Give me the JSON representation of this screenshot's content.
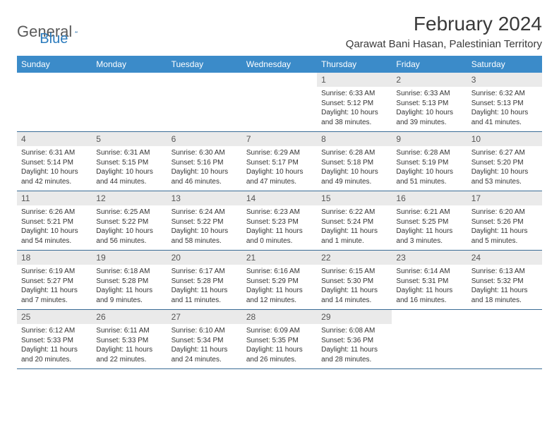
{
  "logo": {
    "part1": "General",
    "part2": "Blue"
  },
  "title": "February 2024",
  "location": "Qarawat Bani Hasan, Palestinian Territory",
  "colors": {
    "header_bar": "#3b8bc9",
    "header_text": "#ffffff",
    "daynum_bg": "#eaeaea",
    "daynum_text": "#555555",
    "border": "#3a6c96",
    "logo_blue": "#2b7bbd",
    "body_text": "#333333"
  },
  "daynames": [
    "Sunday",
    "Monday",
    "Tuesday",
    "Wednesday",
    "Thursday",
    "Friday",
    "Saturday"
  ],
  "weeks": [
    [
      null,
      null,
      null,
      null,
      {
        "n": "1",
        "sr": "Sunrise: 6:33 AM",
        "ss": "Sunset: 5:12 PM",
        "dl": "Daylight: 10 hours and 38 minutes."
      },
      {
        "n": "2",
        "sr": "Sunrise: 6:33 AM",
        "ss": "Sunset: 5:13 PM",
        "dl": "Daylight: 10 hours and 39 minutes."
      },
      {
        "n": "3",
        "sr": "Sunrise: 6:32 AM",
        "ss": "Sunset: 5:13 PM",
        "dl": "Daylight: 10 hours and 41 minutes."
      }
    ],
    [
      {
        "n": "4",
        "sr": "Sunrise: 6:31 AM",
        "ss": "Sunset: 5:14 PM",
        "dl": "Daylight: 10 hours and 42 minutes."
      },
      {
        "n": "5",
        "sr": "Sunrise: 6:31 AM",
        "ss": "Sunset: 5:15 PM",
        "dl": "Daylight: 10 hours and 44 minutes."
      },
      {
        "n": "6",
        "sr": "Sunrise: 6:30 AM",
        "ss": "Sunset: 5:16 PM",
        "dl": "Daylight: 10 hours and 46 minutes."
      },
      {
        "n": "7",
        "sr": "Sunrise: 6:29 AM",
        "ss": "Sunset: 5:17 PM",
        "dl": "Daylight: 10 hours and 47 minutes."
      },
      {
        "n": "8",
        "sr": "Sunrise: 6:28 AM",
        "ss": "Sunset: 5:18 PM",
        "dl": "Daylight: 10 hours and 49 minutes."
      },
      {
        "n": "9",
        "sr": "Sunrise: 6:28 AM",
        "ss": "Sunset: 5:19 PM",
        "dl": "Daylight: 10 hours and 51 minutes."
      },
      {
        "n": "10",
        "sr": "Sunrise: 6:27 AM",
        "ss": "Sunset: 5:20 PM",
        "dl": "Daylight: 10 hours and 53 minutes."
      }
    ],
    [
      {
        "n": "11",
        "sr": "Sunrise: 6:26 AM",
        "ss": "Sunset: 5:21 PM",
        "dl": "Daylight: 10 hours and 54 minutes."
      },
      {
        "n": "12",
        "sr": "Sunrise: 6:25 AM",
        "ss": "Sunset: 5:22 PM",
        "dl": "Daylight: 10 hours and 56 minutes."
      },
      {
        "n": "13",
        "sr": "Sunrise: 6:24 AM",
        "ss": "Sunset: 5:22 PM",
        "dl": "Daylight: 10 hours and 58 minutes."
      },
      {
        "n": "14",
        "sr": "Sunrise: 6:23 AM",
        "ss": "Sunset: 5:23 PM",
        "dl": "Daylight: 11 hours and 0 minutes."
      },
      {
        "n": "15",
        "sr": "Sunrise: 6:22 AM",
        "ss": "Sunset: 5:24 PM",
        "dl": "Daylight: 11 hours and 1 minute."
      },
      {
        "n": "16",
        "sr": "Sunrise: 6:21 AM",
        "ss": "Sunset: 5:25 PM",
        "dl": "Daylight: 11 hours and 3 minutes."
      },
      {
        "n": "17",
        "sr": "Sunrise: 6:20 AM",
        "ss": "Sunset: 5:26 PM",
        "dl": "Daylight: 11 hours and 5 minutes."
      }
    ],
    [
      {
        "n": "18",
        "sr": "Sunrise: 6:19 AM",
        "ss": "Sunset: 5:27 PM",
        "dl": "Daylight: 11 hours and 7 minutes."
      },
      {
        "n": "19",
        "sr": "Sunrise: 6:18 AM",
        "ss": "Sunset: 5:28 PM",
        "dl": "Daylight: 11 hours and 9 minutes."
      },
      {
        "n": "20",
        "sr": "Sunrise: 6:17 AM",
        "ss": "Sunset: 5:28 PM",
        "dl": "Daylight: 11 hours and 11 minutes."
      },
      {
        "n": "21",
        "sr": "Sunrise: 6:16 AM",
        "ss": "Sunset: 5:29 PM",
        "dl": "Daylight: 11 hours and 12 minutes."
      },
      {
        "n": "22",
        "sr": "Sunrise: 6:15 AM",
        "ss": "Sunset: 5:30 PM",
        "dl": "Daylight: 11 hours and 14 minutes."
      },
      {
        "n": "23",
        "sr": "Sunrise: 6:14 AM",
        "ss": "Sunset: 5:31 PM",
        "dl": "Daylight: 11 hours and 16 minutes."
      },
      {
        "n": "24",
        "sr": "Sunrise: 6:13 AM",
        "ss": "Sunset: 5:32 PM",
        "dl": "Daylight: 11 hours and 18 minutes."
      }
    ],
    [
      {
        "n": "25",
        "sr": "Sunrise: 6:12 AM",
        "ss": "Sunset: 5:33 PM",
        "dl": "Daylight: 11 hours and 20 minutes."
      },
      {
        "n": "26",
        "sr": "Sunrise: 6:11 AM",
        "ss": "Sunset: 5:33 PM",
        "dl": "Daylight: 11 hours and 22 minutes."
      },
      {
        "n": "27",
        "sr": "Sunrise: 6:10 AM",
        "ss": "Sunset: 5:34 PM",
        "dl": "Daylight: 11 hours and 24 minutes."
      },
      {
        "n": "28",
        "sr": "Sunrise: 6:09 AM",
        "ss": "Sunset: 5:35 PM",
        "dl": "Daylight: 11 hours and 26 minutes."
      },
      {
        "n": "29",
        "sr": "Sunrise: 6:08 AM",
        "ss": "Sunset: 5:36 PM",
        "dl": "Daylight: 11 hours and 28 minutes."
      },
      null,
      null
    ]
  ]
}
